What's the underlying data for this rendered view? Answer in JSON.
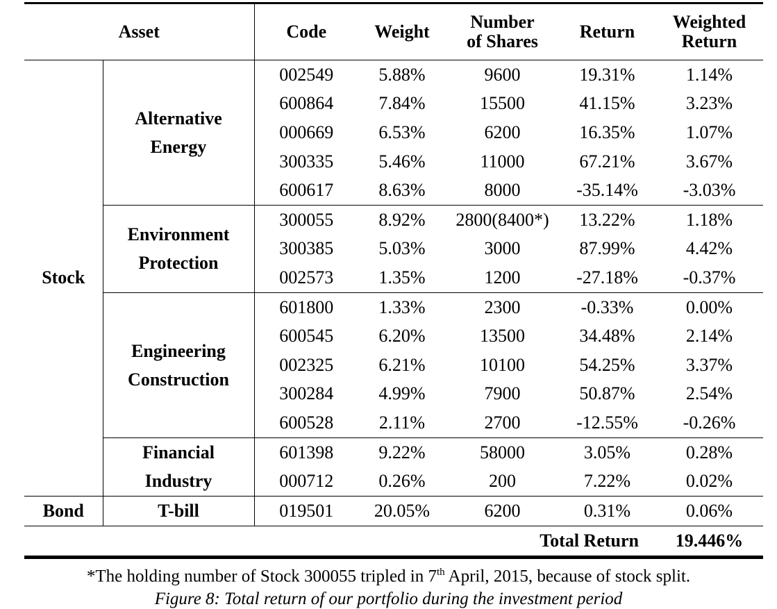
{
  "headers": {
    "asset": "Asset",
    "code": "Code",
    "weight": "Weight",
    "shares_line1": "Number",
    "shares_line2": "of Shares",
    "return": "Return",
    "weighted_line1": "Weighted",
    "weighted_line2": "Return"
  },
  "categories": {
    "stock": "Stock",
    "bond": "Bond"
  },
  "sectors": {
    "alt_line1": "Alternative",
    "alt_line2": "Energy",
    "env_line1": "Environment",
    "env_line2": "Protection",
    "eng_line1": "Engineering",
    "eng_line2": "Construction",
    "fin_line1": "Financial",
    "fin_line2": "Industry",
    "tbill": "T-bill"
  },
  "rows": [
    {
      "code": "002549",
      "weight": "5.88%",
      "shares": "9600",
      "ret": "19.31%",
      "wret": "1.14%"
    },
    {
      "code": "600864",
      "weight": "7.84%",
      "shares": "15500",
      "ret": "41.15%",
      "wret": "3.23%"
    },
    {
      "code": "000669",
      "weight": "6.53%",
      "shares": "6200",
      "ret": "16.35%",
      "wret": "1.07%"
    },
    {
      "code": "300335",
      "weight": "5.46%",
      "shares": "11000",
      "ret": "67.21%",
      "wret": "3.67%"
    },
    {
      "code": "600617",
      "weight": "8.63%",
      "shares": "8000",
      "ret": "-35.14%",
      "wret": "-3.03%"
    },
    {
      "code": "300055",
      "weight": "8.92%",
      "shares": "2800(8400*)",
      "ret": "13.22%",
      "wret": "1.18%"
    },
    {
      "code": "300385",
      "weight": "5.03%",
      "shares": "3000",
      "ret": "87.99%",
      "wret": "4.42%"
    },
    {
      "code": "002573",
      "weight": "1.35%",
      "shares": "1200",
      "ret": "-27.18%",
      "wret": "-0.37%"
    },
    {
      "code": "601800",
      "weight": "1.33%",
      "shares": "2300",
      "ret": "-0.33%",
      "wret": "0.00%"
    },
    {
      "code": "600545",
      "weight": "6.20%",
      "shares": "13500",
      "ret": "34.48%",
      "wret": "2.14%"
    },
    {
      "code": "002325",
      "weight": "6.21%",
      "shares": "10100",
      "ret": "54.25%",
      "wret": "3.37%"
    },
    {
      "code": "300284",
      "weight": "4.99%",
      "shares": "7900",
      "ret": "50.87%",
      "wret": "2.54%"
    },
    {
      "code": "600528",
      "weight": "2.11%",
      "shares": "2700",
      "ret": "-12.55%",
      "wret": "-0.26%"
    },
    {
      "code": "601398",
      "weight": "9.22%",
      "shares": "58000",
      "ret": "3.05%",
      "wret": "0.28%"
    },
    {
      "code": "000712",
      "weight": "0.26%",
      "shares": "200",
      "ret": "7.22%",
      "wret": "0.02%"
    },
    {
      "code": "019501",
      "weight": "20.05%",
      "shares": "6200",
      "ret": "0.31%",
      "wret": "0.06%"
    }
  ],
  "total": {
    "label": "Total Return",
    "value": "19.446%"
  },
  "footnote": {
    "before": "*The holding number of Stock 300055 tripled in 7",
    "sup": "th",
    "after": " April, 2015, because of stock split."
  },
  "caption": "Figure 8: Total return of our portfolio during the investment period"
}
